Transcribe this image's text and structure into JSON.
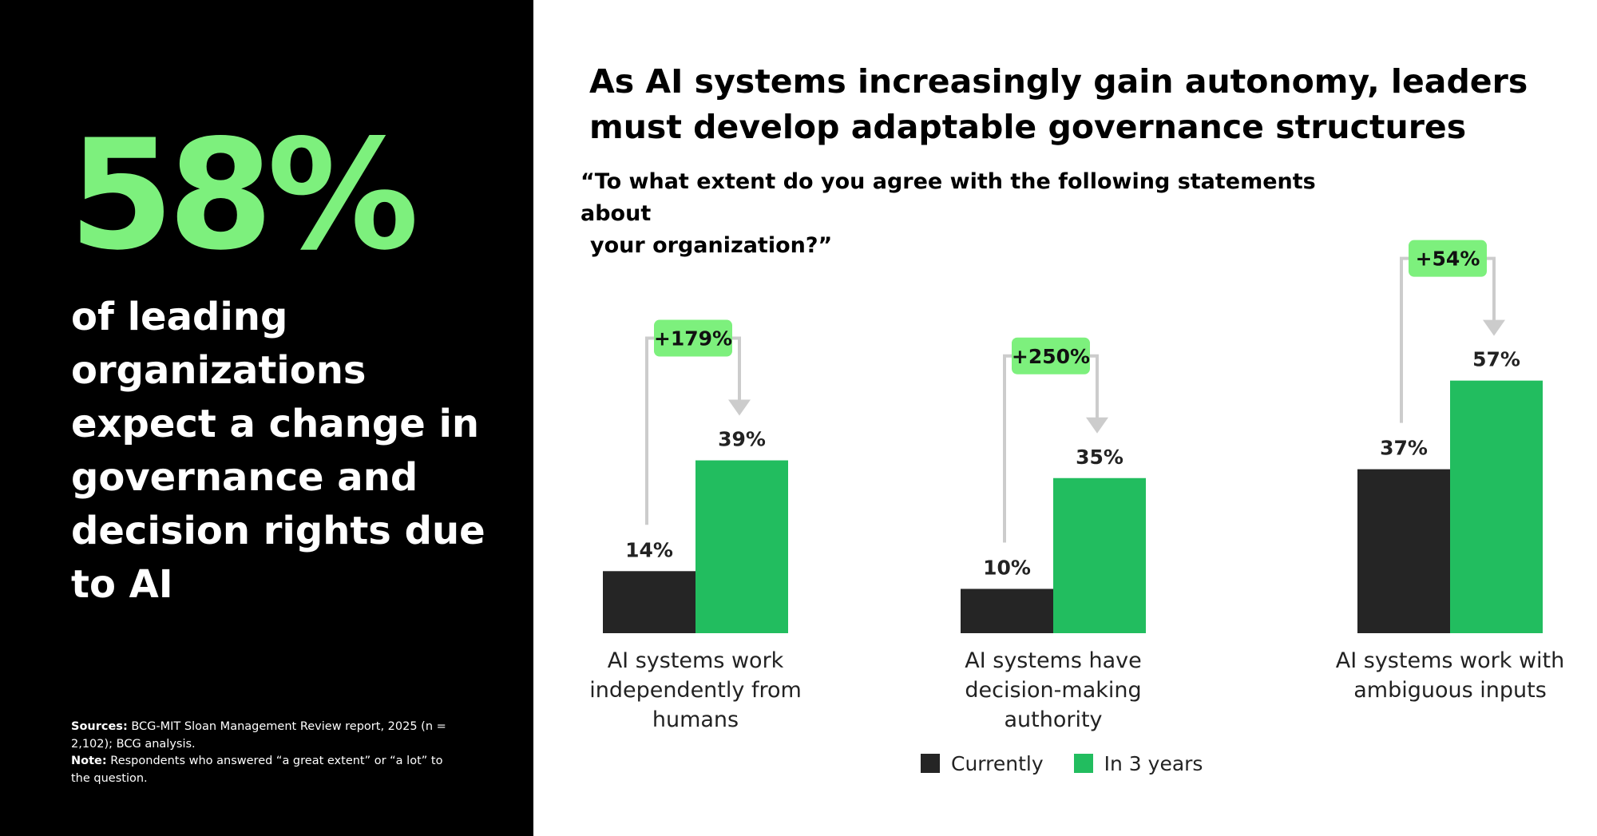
{
  "colors": {
    "panel_bg": "#000000",
    "accent_green": "#7df07d",
    "currently": "#252525",
    "in_3_years": "#22bd5f",
    "bracket": "#cccccc"
  },
  "left_panel": {
    "big_stat": "58%",
    "caption": "of leading organizations expect a change in governance and decision rights due to AI",
    "sources_label": "Sources:",
    "sources_text": "BCG-MIT Sloan Management Review report, 2025 (n = 2,102); BCG analysis.",
    "note_label": "Note:",
    "note_text": "Respondents who answered “a great extent” or “a lot” to the question."
  },
  "header": {
    "title": "As AI systems increasingly gain autonomy, leaders must develop adaptable governance structures",
    "question_line1": "“To what extent do you agree with the following statements about",
    "question_line2": "your organization?”"
  },
  "chart_data": {
    "type": "bar",
    "categories": [
      "AI systems work independently from humans",
      "AI systems have decision-making authority",
      "AI systems work with ambiguous inputs"
    ],
    "series": [
      {
        "name": "Currently",
        "values": [
          14,
          10,
          37
        ]
      },
      {
        "name": "In 3 years",
        "values": [
          39,
          35,
          57
        ]
      }
    ],
    "value_labels": {
      "currently": [
        "14%",
        "10%",
        "37%"
      ],
      "in_3_years": [
        "39%",
        "35%",
        "57%"
      ]
    },
    "change_labels": [
      "+179%",
      "+250%",
      "+54%"
    ],
    "ylim": [
      0,
      100
    ],
    "legend": {
      "placement": "bottom-center",
      "entries": [
        "Currently",
        "In 3 years"
      ]
    },
    "grid": false
  }
}
